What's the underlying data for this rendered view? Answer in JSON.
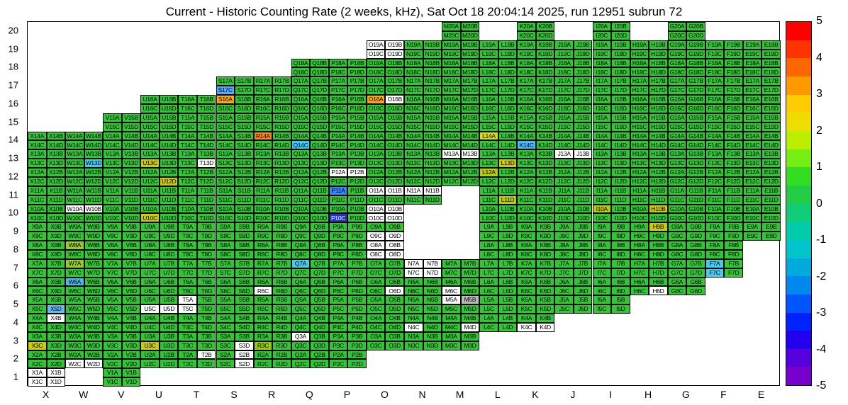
{
  "title": "Current - Historic Counting Rate (2 weeks, kHz), Sat Oct 18 20:04:14 2025, run 12951 subrun 72",
  "chart_data": {
    "type": "heatmap",
    "title": "Current - Historic Counting Rate (2 weeks, kHz)",
    "timestamp": "Sat Oct 18 20:04:14 2025",
    "run": "12951",
    "subrun": "72",
    "units": "kHz",
    "value_range": [
      -5,
      5
    ],
    "x_categories": [
      "X",
      "W",
      "V",
      "U",
      "T",
      "S",
      "R",
      "Q",
      "P",
      "O",
      "N",
      "M",
      "L",
      "K",
      "J",
      "I",
      "H",
      "G",
      "F",
      "E"
    ],
    "y_categories": [
      "20",
      "19",
      "18",
      "17",
      "16",
      "15",
      "14",
      "13",
      "12",
      "11",
      "10",
      "9",
      "8",
      "7",
      "6",
      "5",
      "4",
      "3",
      "2",
      "1"
    ],
    "cell_label_pattern": "{column}{row}{quadrant}",
    "quadrants": [
      "A",
      "B",
      "C",
      "D"
    ],
    "default_cell": {
      "color": "#2fc832",
      "value": 0.3
    },
    "rows": [
      {
        "row": 20,
        "columns": [
          "M",
          "K",
          "I",
          "G"
        ]
      },
      {
        "row": 19,
        "columns": [
          "O",
          "N",
          "M",
          "L",
          "K",
          "J",
          "I",
          "H",
          "G",
          "F",
          "E"
        ]
      },
      {
        "row": 18,
        "columns": [
          "Q",
          "P",
          "O",
          "N",
          "M",
          "L",
          "K",
          "J",
          "I",
          "H",
          "G",
          "F",
          "E"
        ]
      },
      {
        "row": 17,
        "columns": [
          "S",
          "R",
          "Q",
          "P",
          "O",
          "N",
          "M",
          "L",
          "K",
          "J",
          "I",
          "H",
          "G",
          "F",
          "E"
        ]
      },
      {
        "row": 16,
        "columns": [
          "U",
          "T",
          "S",
          "R",
          "Q",
          "P",
          "O",
          "N",
          "M",
          "L",
          "K",
          "J",
          "I",
          "H",
          "G",
          "F",
          "E"
        ]
      },
      {
        "row": 15,
        "columns": [
          "V",
          "U",
          "T",
          "S",
          "R",
          "Q",
          "P",
          "O",
          "N",
          "M",
          "L",
          "K",
          "J",
          "I",
          "H",
          "G",
          "F",
          "E"
        ]
      },
      {
        "row": 14,
        "columns": [
          "X",
          "W",
          "V",
          "U",
          "T",
          "S",
          "R",
          "Q",
          "P",
          "O",
          "N",
          "M",
          "L",
          "K",
          "J",
          "I",
          "H",
          "G",
          "F",
          "E"
        ]
      },
      {
        "row": 13,
        "columns": [
          "X",
          "W",
          "V",
          "U",
          "T",
          "S",
          "R",
          "Q",
          "P",
          "O",
          "N",
          "M",
          "L",
          "K",
          "J",
          "I",
          "H",
          "G",
          "F",
          "E"
        ]
      },
      {
        "row": 12,
        "columns": [
          "X",
          "W",
          "V",
          "U",
          "T",
          "S",
          "R",
          "Q",
          "P",
          "O",
          "N",
          "M",
          "L",
          "K",
          "J",
          "I",
          "H",
          "G",
          "F",
          "E"
        ]
      },
      {
        "row": 11,
        "columns": [
          "X",
          "W",
          "V",
          "U",
          "T",
          "S",
          "R",
          "Q",
          "P",
          "O",
          "N",
          "L",
          "K",
          "J",
          "I",
          "H",
          "G",
          "F",
          "E"
        ]
      },
      {
        "row": 10,
        "columns": [
          "X",
          "W",
          "V",
          "U",
          "T",
          "S",
          "R",
          "Q",
          "P",
          "O",
          "L",
          "K",
          "J",
          "I",
          "H",
          "G",
          "F",
          "E"
        ]
      },
      {
        "row": 9,
        "columns": [
          "X",
          "W",
          "V",
          "U",
          "T",
          "S",
          "R",
          "Q",
          "P",
          "O",
          "L",
          "K",
          "J",
          "I",
          "H",
          "G",
          "F",
          "E"
        ]
      },
      {
        "row": 8,
        "columns": [
          "X",
          "W",
          "V",
          "U",
          "T",
          "S",
          "R",
          "Q",
          "P",
          "O",
          "L",
          "K",
          "J",
          "I",
          "H",
          "G",
          "F"
        ]
      },
      {
        "row": 7,
        "columns": [
          "X",
          "W",
          "V",
          "U",
          "T",
          "S",
          "R",
          "Q",
          "P",
          "O",
          "N",
          "M",
          "L",
          "K",
          "J",
          "I",
          "H",
          "G",
          "F"
        ]
      },
      {
        "row": 6,
        "columns": [
          "X",
          "W",
          "V",
          "U",
          "T",
          "S",
          "R",
          "Q",
          "P",
          "O",
          "N",
          "M",
          "L",
          "K",
          "J",
          "I",
          "H",
          "G"
        ]
      },
      {
        "row": 5,
        "columns": [
          "X",
          "W",
          "V",
          "U",
          "T",
          "S",
          "R",
          "Q",
          "P",
          "O",
          "N",
          "M",
          "L",
          "K",
          "J",
          "I"
        ]
      },
      {
        "row": 4,
        "columns": [
          "X",
          "W",
          "V",
          "U",
          "T",
          "S",
          "R",
          "Q",
          "P",
          "O",
          "N",
          "M",
          "L",
          "K"
        ]
      },
      {
        "row": 3,
        "columns": [
          "X",
          "W",
          "V",
          "U",
          "T",
          "S",
          "R",
          "Q",
          "P",
          "O",
          "N",
          "M"
        ]
      },
      {
        "row": 2,
        "columns": [
          "X",
          "W",
          "V",
          "U",
          "T",
          "S",
          "R",
          "Q",
          "P"
        ]
      },
      {
        "row": 1,
        "columns": [
          "X",
          "V"
        ]
      }
    ],
    "overrides": {
      "S17C": {
        "color": "#55aaff",
        "value": -2
      },
      "S16A": {
        "color": "#ffaa00",
        "value": 3
      },
      "O16A": {
        "color": "#ffaa00",
        "value": 3
      },
      "R14A": {
        "color": "#ff8800",
        "value": 3.5
      },
      "Q14C": {
        "color": "#33ccff",
        "value": -1.5
      },
      "K14C": {
        "color": "#44bbff",
        "value": -2
      },
      "L14A": {
        "color": "#dddd00",
        "value": 2
      },
      "W13D": {
        "color": "#44ccee",
        "value": -1.5
      },
      "U13C": {
        "color": "#cccc00",
        "value": 2
      },
      "L13D": {
        "color": "#cccc00",
        "value": 2
      },
      "U12D": {
        "color": "#cccc00",
        "value": 2
      },
      "L12A": {
        "color": "#bbcc00",
        "value": 1.5
      },
      "P11A": {
        "color": "#3388ff",
        "value": -2.5
      },
      "L11D": {
        "color": "#bbcc00",
        "value": 1.5
      },
      "P10C": {
        "color": "#2233cc",
        "value": -3.5
      },
      "U10C": {
        "color": "#cccc00",
        "value": 2
      },
      "I10A": {
        "color": "#bbcc00",
        "value": 1.5
      },
      "H10B": {
        "color": "#cccc00",
        "value": 2
      },
      "H9B": {
        "color": "#cccc00",
        "value": 2
      },
      "W8A": {
        "color": "#99cc22",
        "value": 1
      },
      "W7A": {
        "color": "#99cc22",
        "value": 1
      },
      "Q7A": {
        "color": "#44ccee",
        "value": -1.5
      },
      "F7A": {
        "color": "#44ccee",
        "value": -1.5
      },
      "F7C": {
        "color": "#44ccee",
        "value": -1.5
      },
      "W6A": {
        "color": "#44bbee",
        "value": -1.5
      },
      "X5D": {
        "color": "#66bbee",
        "value": -1.5
      },
      "M5B": {
        "color": "#bbbbbb",
        "value": null
      },
      "X3C": {
        "color": "#cccc00",
        "value": 2
      },
      "U3C": {
        "color": "#cccc00",
        "value": 2
      },
      "R3C": {
        "color": "#99cc00",
        "value": 1.5
      }
    },
    "no_data_cells": [
      "O19A",
      "O19B",
      "O19C",
      "O19D",
      "O16B",
      "M13A",
      "M13B",
      "J13A",
      "J13B",
      "T13D",
      "P12A",
      "P12B",
      "O11A",
      "O11B",
      "N11A",
      "N11B",
      "W10A",
      "W10B",
      "O10A",
      "O10B",
      "O10C",
      "O10D",
      "O9C",
      "O9D",
      "O8A",
      "O8B",
      "O8C",
      "O8D",
      "N7A",
      "N7B",
      "N7C",
      "N7D",
      "R6C",
      "O6D",
      "M6C",
      "H6D",
      "U5C",
      "U5D",
      "T5A",
      "T5C",
      "M5A",
      "X4B",
      "N4C",
      "M4D",
      "K4C",
      "K4D",
      "S3D",
      "Q3A",
      "W2C",
      "W2D",
      "T2B",
      "S2B",
      "S2D",
      "X1A",
      "X1B",
      "X1C",
      "X1D"
    ],
    "light_text_cells": [
      "P10C"
    ],
    "colorbar": {
      "tick_labels": [
        "5",
        "4",
        "3",
        "2",
        "1",
        "0",
        "-1",
        "-2",
        "-3",
        "-4",
        "-5"
      ],
      "segment_colors_top_to_bottom": [
        "#ff0000",
        "#ff3300",
        "#ff6600",
        "#ff9900",
        "#ffcc00",
        "#eedd00",
        "#bbee00",
        "#77ee11",
        "#33dd22",
        "#22cc44",
        "#11cc77",
        "#00ccaa",
        "#00c4cc",
        "#00aadd",
        "#0088ee",
        "#0055ff",
        "#0022ff",
        "#2200ee",
        "#5500dd",
        "#7700cc"
      ]
    }
  }
}
